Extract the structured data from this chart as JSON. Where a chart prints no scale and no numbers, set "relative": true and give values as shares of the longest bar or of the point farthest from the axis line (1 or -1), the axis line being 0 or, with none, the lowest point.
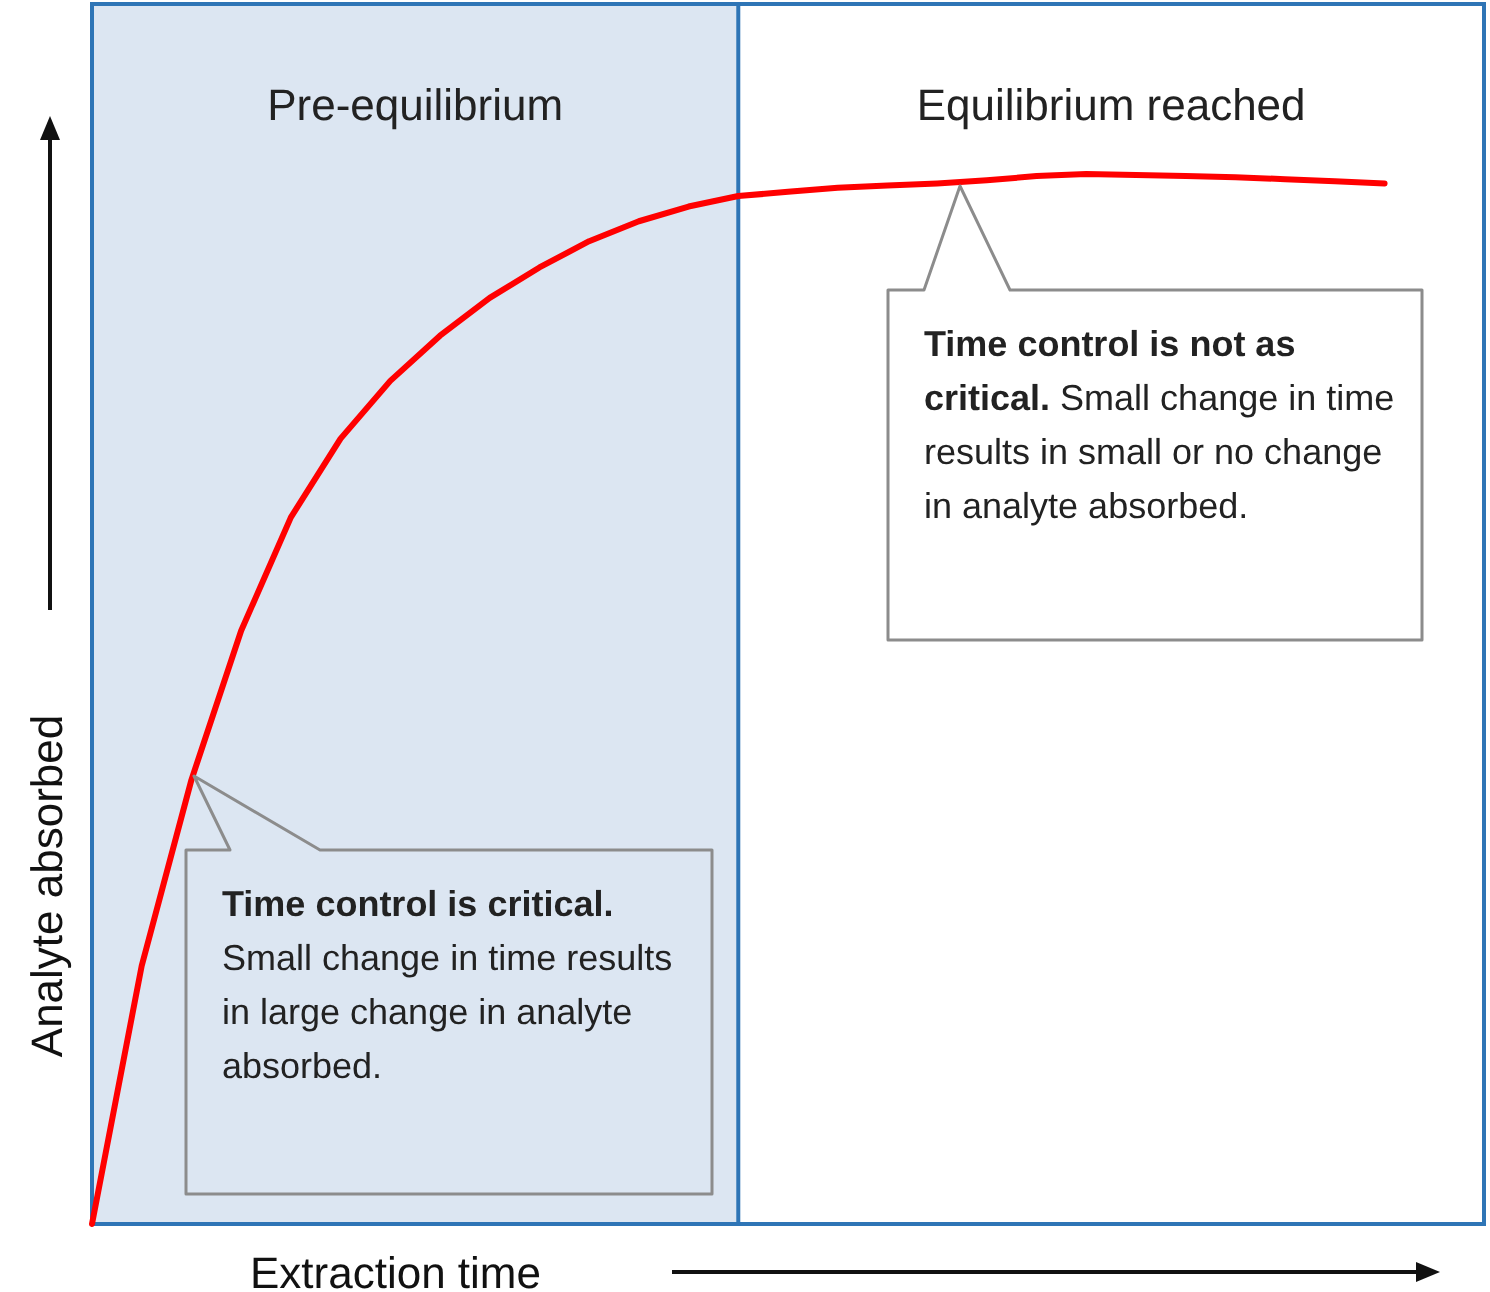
{
  "chart_data": {
    "type": "line",
    "relative": true,
    "xlabel": "Extraction time",
    "ylabel": "Analyte absorbed",
    "marker": "none",
    "line_style": "solid",
    "categories": [
      null,
      null,
      null,
      null,
      null,
      null,
      null,
      null,
      null,
      null,
      null,
      null,
      null,
      null,
      null,
      null,
      null,
      null,
      null,
      null,
      null,
      null,
      null,
      null,
      null,
      null,
      null,
      null,
      null
    ],
    "series": [
      {
        "color": "#ff0000",
        "values": [
          0,
          0.246,
          0.423,
          0.565,
          0.673,
          0.748,
          0.803,
          0.846,
          0.882,
          0.911,
          0.936,
          0.955,
          0.969,
          0.979,
          0.983,
          0.987,
          0.989,
          0.991,
          0.994,
          0.998,
          1.0,
          0.999,
          0.998,
          0.997,
          0.995,
          0.993,
          0.991,
          null,
          null
        ]
      }
    ],
    "annotations": [
      "Pre-equilibrium",
      "Equilibrium reached",
      "Time control is critical. Small change in time results in large change in analyte absorbed.",
      "Time control is not as critical. Small change in time results in small or no change in analyte absorbed."
    ]
  }
}
